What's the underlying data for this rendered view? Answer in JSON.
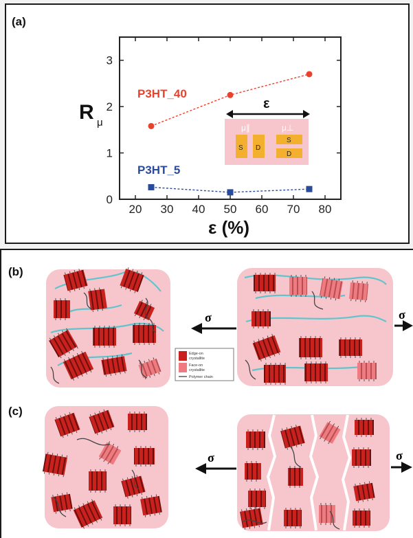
{
  "panel_a": {
    "label": "(a)",
    "inset": {
      "strain_symbol": "ε",
      "mu_parallel": "μ∥",
      "mu_perp": "μ⊥",
      "source": "S",
      "drain": "D"
    }
  },
  "panel_b": {
    "label": "(b)"
  },
  "panel_c": {
    "label": "(c)"
  },
  "stress_symbol": "σ",
  "legend": {
    "edge_on": [
      "Edge-on",
      "crystallite"
    ],
    "face_on": [
      "Face-on",
      "crystallite"
    ],
    "chain": "Polymer chain"
  },
  "colors": {
    "p3ht40": "#e8412c",
    "p3ht5": "#2a4a9c",
    "pink_bg": "#f7c6cc",
    "edge_on": "#c9221e",
    "face_on": "#ee7b80",
    "chain_cyan": "#5fc4cc",
    "pad_yellow": "#f2b02e"
  },
  "chart_data": {
    "type": "scatter",
    "xlabel": "ε (%)",
    "ylabel": "R",
    "ylabel_sub": "μ",
    "xlim": [
      15,
      85
    ],
    "ylim": [
      0,
      3.5
    ],
    "xticks": [
      "20",
      "30",
      "40",
      "50",
      "60",
      "70",
      "80"
    ],
    "yticks": [
      "0",
      "1",
      "2",
      "3"
    ],
    "series": [
      {
        "name": "P3HT_40",
        "x": [
          25,
          50,
          75
        ],
        "y": [
          1.58,
          2.25,
          2.7
        ],
        "color": "#e8412c",
        "marker": "circle"
      },
      {
        "name": "P3HT_5",
        "x": [
          25,
          50,
          75
        ],
        "y": [
          0.26,
          0.15,
          0.22
        ],
        "color": "#2a4a9c",
        "marker": "square"
      }
    ]
  }
}
